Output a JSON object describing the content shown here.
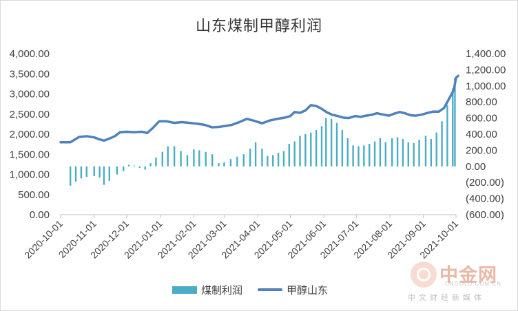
{
  "chart_data": {
    "type": "bar+line",
    "title": "山东煤制甲醇利润",
    "x_ticks": [
      "2020-10-01",
      "2020-11-01",
      "2020-12-01",
      "2021-01-01",
      "2021-02-01",
      "2021-03-01",
      "2021-04-01",
      "2021-05-01",
      "2021-06-01",
      "2021-07-01",
      "2021-08-01",
      "2021-09-01",
      "2021-10-01"
    ],
    "y_left": {
      "range": [
        0,
        4000
      ],
      "ticks": [
        "0.00",
        "500.00",
        "1,000.00",
        "1,500.00",
        "2,000.00",
        "2,500.00",
        "3,000.00",
        "3,500.00",
        "4,000.00"
      ]
    },
    "y_right": {
      "range": [
        -600,
        1400
      ],
      "ticks": [
        "(600.00)",
        "(400.00)",
        "(200.00)",
        "0.00",
        "200.00",
        "400.00",
        "600.00",
        "800.00",
        "1,000.00",
        "1,200.00",
        "1,400.00"
      ]
    },
    "grid": false,
    "legend_position": "bottom",
    "series": [
      {
        "name": "煤制利润",
        "type": "bar",
        "axis": "right",
        "color": "#4bacc6",
        "points": [
          [
            "2020-10-10",
            -240
          ],
          [
            "2020-10-15",
            -190
          ],
          [
            "2020-10-20",
            -150
          ],
          [
            "2020-10-25",
            -130
          ],
          [
            "2020-11-01",
            -120
          ],
          [
            "2020-11-06",
            -140
          ],
          [
            "2020-11-10",
            -230
          ],
          [
            "2020-11-15",
            -180
          ],
          [
            "2020-11-22",
            -100
          ],
          [
            "2020-11-28",
            -60
          ],
          [
            "2020-12-03",
            20
          ],
          [
            "2020-12-08",
            10
          ],
          [
            "2020-12-13",
            -20
          ],
          [
            "2020-12-18",
            -40
          ],
          [
            "2020-12-23",
            40
          ],
          [
            "2020-12-28",
            110
          ],
          [
            "2021-01-03",
            180
          ],
          [
            "2021-01-08",
            250
          ],
          [
            "2021-01-14",
            250
          ],
          [
            "2021-01-20",
            190
          ],
          [
            "2021-01-26",
            140
          ],
          [
            "2021-02-01",
            210
          ],
          [
            "2021-02-06",
            200
          ],
          [
            "2021-02-12",
            180
          ],
          [
            "2021-02-18",
            150
          ],
          [
            "2021-02-24",
            40
          ],
          [
            "2021-03-01",
            50
          ],
          [
            "2021-03-07",
            90
          ],
          [
            "2021-03-13",
            120
          ],
          [
            "2021-03-19",
            150
          ],
          [
            "2021-03-25",
            220
          ],
          [
            "2021-03-30",
            300
          ],
          [
            "2021-04-05",
            220
          ],
          [
            "2021-04-10",
            130
          ],
          [
            "2021-04-15",
            140
          ],
          [
            "2021-04-20",
            170
          ],
          [
            "2021-04-25",
            190
          ],
          [
            "2021-04-30",
            280
          ],
          [
            "2021-05-05",
            310
          ],
          [
            "2021-05-10",
            380
          ],
          [
            "2021-05-15",
            400
          ],
          [
            "2021-05-20",
            420
          ],
          [
            "2021-05-25",
            450
          ],
          [
            "2021-05-30",
            500
          ],
          [
            "2021-06-03",
            600
          ],
          [
            "2021-06-08",
            590
          ],
          [
            "2021-06-13",
            540
          ],
          [
            "2021-06-18",
            450
          ],
          [
            "2021-06-23",
            350
          ],
          [
            "2021-06-28",
            260
          ],
          [
            "2021-07-03",
            250
          ],
          [
            "2021-07-08",
            260
          ],
          [
            "2021-07-13",
            280
          ],
          [
            "2021-07-18",
            310
          ],
          [
            "2021-07-23",
            350
          ],
          [
            "2021-07-28",
            300
          ],
          [
            "2021-08-03",
            350
          ],
          [
            "2021-08-08",
            360
          ],
          [
            "2021-08-13",
            340
          ],
          [
            "2021-08-18",
            300
          ],
          [
            "2021-08-23",
            290
          ],
          [
            "2021-08-28",
            330
          ],
          [
            "2021-09-03",
            380
          ],
          [
            "2021-09-08",
            340
          ],
          [
            "2021-09-13",
            420
          ],
          [
            "2021-09-18",
            560
          ],
          [
            "2021-09-23",
            760
          ],
          [
            "2021-09-28",
            970
          ],
          [
            "2021-09-30",
            1100
          ]
        ]
      },
      {
        "name": "甲醇山东",
        "type": "line",
        "axis": "left",
        "color": "#4f81bd",
        "points": [
          [
            "2020-10-01",
            1800
          ],
          [
            "2020-10-10",
            1800
          ],
          [
            "2020-10-18",
            1930
          ],
          [
            "2020-10-25",
            1950
          ],
          [
            "2020-11-01",
            1920
          ],
          [
            "2020-11-06",
            1870
          ],
          [
            "2020-11-10",
            1840
          ],
          [
            "2020-11-15",
            1890
          ],
          [
            "2020-11-20",
            1950
          ],
          [
            "2020-11-25",
            2050
          ],
          [
            "2020-12-01",
            2060
          ],
          [
            "2020-12-08",
            2050
          ],
          [
            "2020-12-15",
            2060
          ],
          [
            "2020-12-20",
            2030
          ],
          [
            "2020-12-25",
            2150
          ],
          [
            "2020-12-31",
            2320
          ],
          [
            "2021-01-07",
            2320
          ],
          [
            "2021-01-14",
            2280
          ],
          [
            "2021-01-21",
            2300
          ],
          [
            "2021-01-28",
            2280
          ],
          [
            "2021-02-04",
            2260
          ],
          [
            "2021-02-11",
            2230
          ],
          [
            "2021-02-18",
            2170
          ],
          [
            "2021-02-24",
            2180
          ],
          [
            "2021-03-01",
            2200
          ],
          [
            "2021-03-08",
            2230
          ],
          [
            "2021-03-15",
            2300
          ],
          [
            "2021-03-22",
            2380
          ],
          [
            "2021-03-29",
            2330
          ],
          [
            "2021-04-05",
            2270
          ],
          [
            "2021-04-12",
            2340
          ],
          [
            "2021-04-19",
            2380
          ],
          [
            "2021-04-26",
            2410
          ],
          [
            "2021-05-01",
            2450
          ],
          [
            "2021-05-05",
            2550
          ],
          [
            "2021-05-10",
            2530
          ],
          [
            "2021-05-15",
            2590
          ],
          [
            "2021-05-20",
            2720
          ],
          [
            "2021-05-25",
            2700
          ],
          [
            "2021-05-30",
            2630
          ],
          [
            "2021-06-04",
            2540
          ],
          [
            "2021-06-09",
            2480
          ],
          [
            "2021-06-14",
            2450
          ],
          [
            "2021-06-19",
            2410
          ],
          [
            "2021-06-24",
            2400
          ],
          [
            "2021-06-30",
            2450
          ],
          [
            "2021-07-05",
            2430
          ],
          [
            "2021-07-10",
            2460
          ],
          [
            "2021-07-15",
            2480
          ],
          [
            "2021-07-20",
            2520
          ],
          [
            "2021-07-25",
            2490
          ],
          [
            "2021-07-31",
            2460
          ],
          [
            "2021-08-05",
            2510
          ],
          [
            "2021-08-10",
            2550
          ],
          [
            "2021-08-15",
            2520
          ],
          [
            "2021-08-20",
            2470
          ],
          [
            "2021-08-25",
            2460
          ],
          [
            "2021-08-31",
            2490
          ],
          [
            "2021-09-05",
            2530
          ],
          [
            "2021-09-10",
            2560
          ],
          [
            "2021-09-15",
            2560
          ],
          [
            "2021-09-20",
            2650
          ],
          [
            "2021-09-23",
            2800
          ],
          [
            "2021-09-26",
            2950
          ],
          [
            "2021-09-29",
            3100
          ],
          [
            "2021-10-01",
            3400
          ],
          [
            "2021-10-03",
            3450
          ]
        ]
      }
    ]
  },
  "legend": {
    "bar_label": "煤制利润",
    "line_label": "甲醇山东"
  },
  "watermark": {
    "name": "中金网",
    "url": "CNGOLD.COM.CN",
    "slogan": "中文财经新媒体",
    "color": "#e8b9a6"
  }
}
